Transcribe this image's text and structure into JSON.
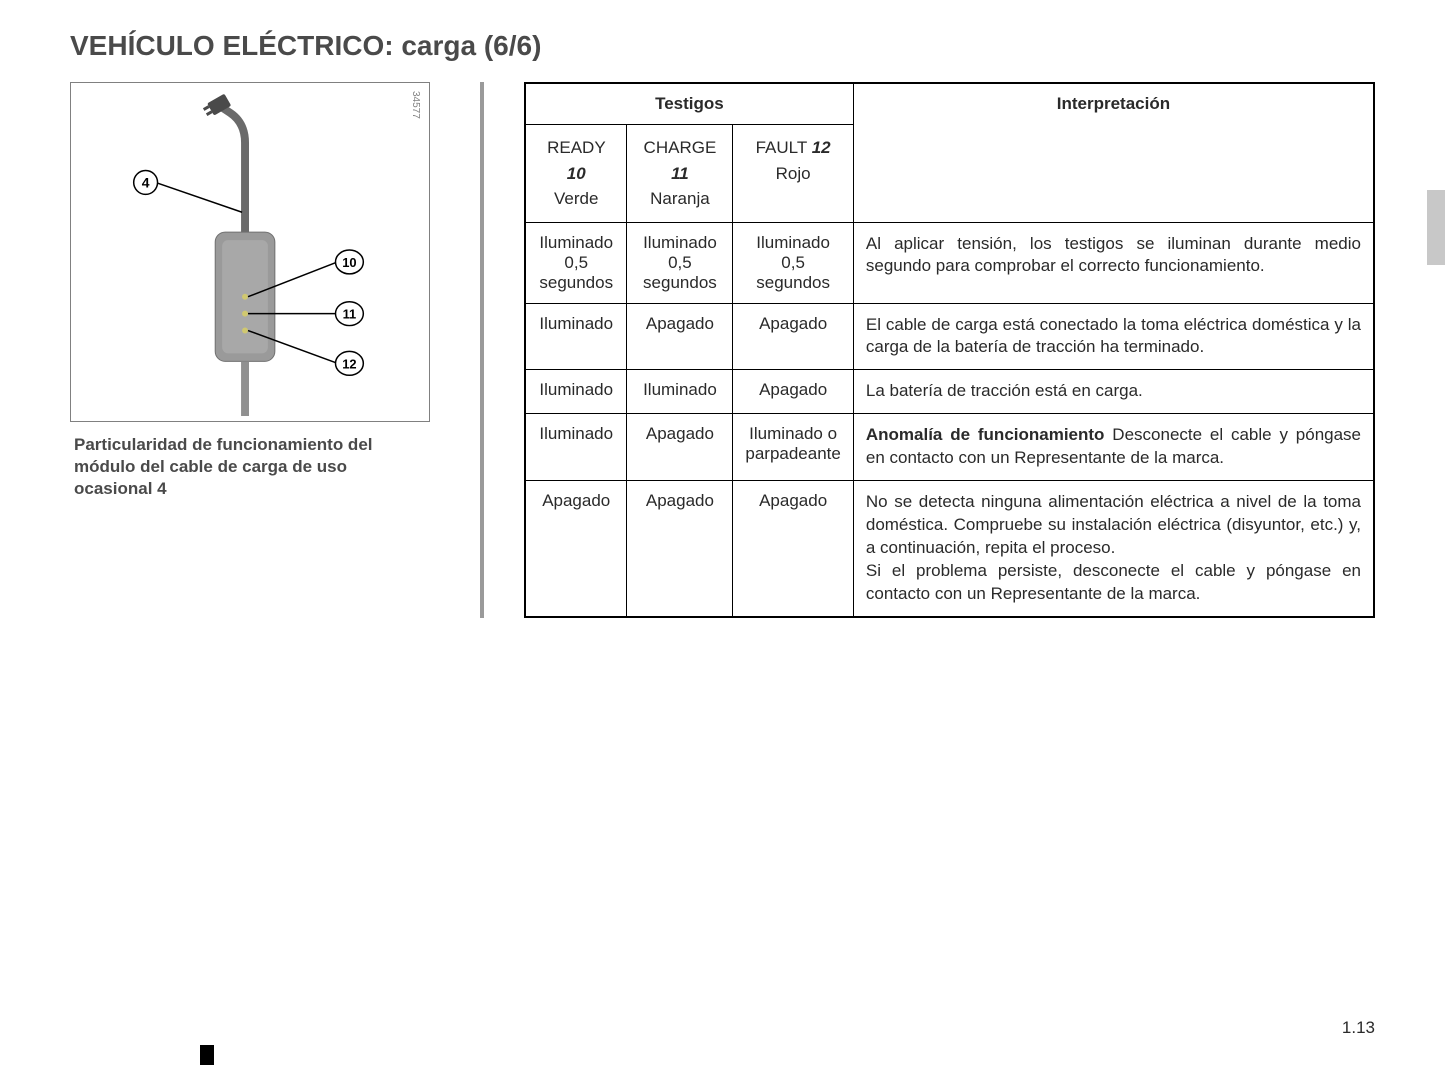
{
  "page": {
    "title": "VEHÍCULO ELÉCTRICO: carga (6/6)",
    "number": "1.13"
  },
  "diagram": {
    "id_number": "34577",
    "caption": "Particularidad de funcionamiento del módulo del cable de carga de uso ocasional 4",
    "callouts": {
      "cable": "4",
      "led1": "10",
      "led2": "11",
      "led3": "12"
    },
    "colors": {
      "module_body": "#9a9a9a",
      "cable_color": "#6a6a6a",
      "led_color": "#d0c870",
      "plug_color": "#4a4a4a"
    }
  },
  "table": {
    "headers": {
      "testigos": "Testigos",
      "interpretacion": "Interpretación",
      "cols": [
        {
          "label": "READY",
          "num": "10",
          "color": "Verde"
        },
        {
          "label": "CHARGE",
          "num": "11",
          "color": "Naranja"
        },
        {
          "label": "FAULT",
          "num": "12",
          "color": "Rojo"
        }
      ]
    },
    "rows": [
      {
        "c0": "Iluminado\n0,5\nsegundos",
        "c1": "Iluminado\n0,5\nsegundos",
        "c2": "Iluminado\n0,5\nsegundos",
        "interp": "Al aplicar tensión, los testigos se iluminan durante medio segundo para comprobar el correcto funcionamiento."
      },
      {
        "c0": "Iluminado",
        "c1": "Apagado",
        "c2": "Apagado",
        "interp": "El cable de carga está conectado la toma eléctrica doméstica y la carga de la batería de tracción ha terminado."
      },
      {
        "c0": "Iluminado",
        "c1": "Iluminado",
        "c2": "Apagado",
        "interp": "La batería de tracción está en carga."
      },
      {
        "c0": "Iluminado",
        "c1": "Apagado",
        "c2": "Iluminado o\nparpadeante",
        "interp_title": "Anomalía de funcionamiento",
        "interp": "Desconecte el cable y póngase en contacto con un Representante de la marca."
      },
      {
        "c0": "Apagado",
        "c1": "Apagado",
        "c2": "Apagado",
        "interp": "No se detecta ninguna alimentación eléctrica a nivel de la toma doméstica. Compruebe su instalación eléctrica (disyuntor, etc.) y, a continuación, repita el proceso.\nSi el problema persiste, desconecte el cable y póngase en contacto con un Representante de la marca."
      }
    ]
  }
}
